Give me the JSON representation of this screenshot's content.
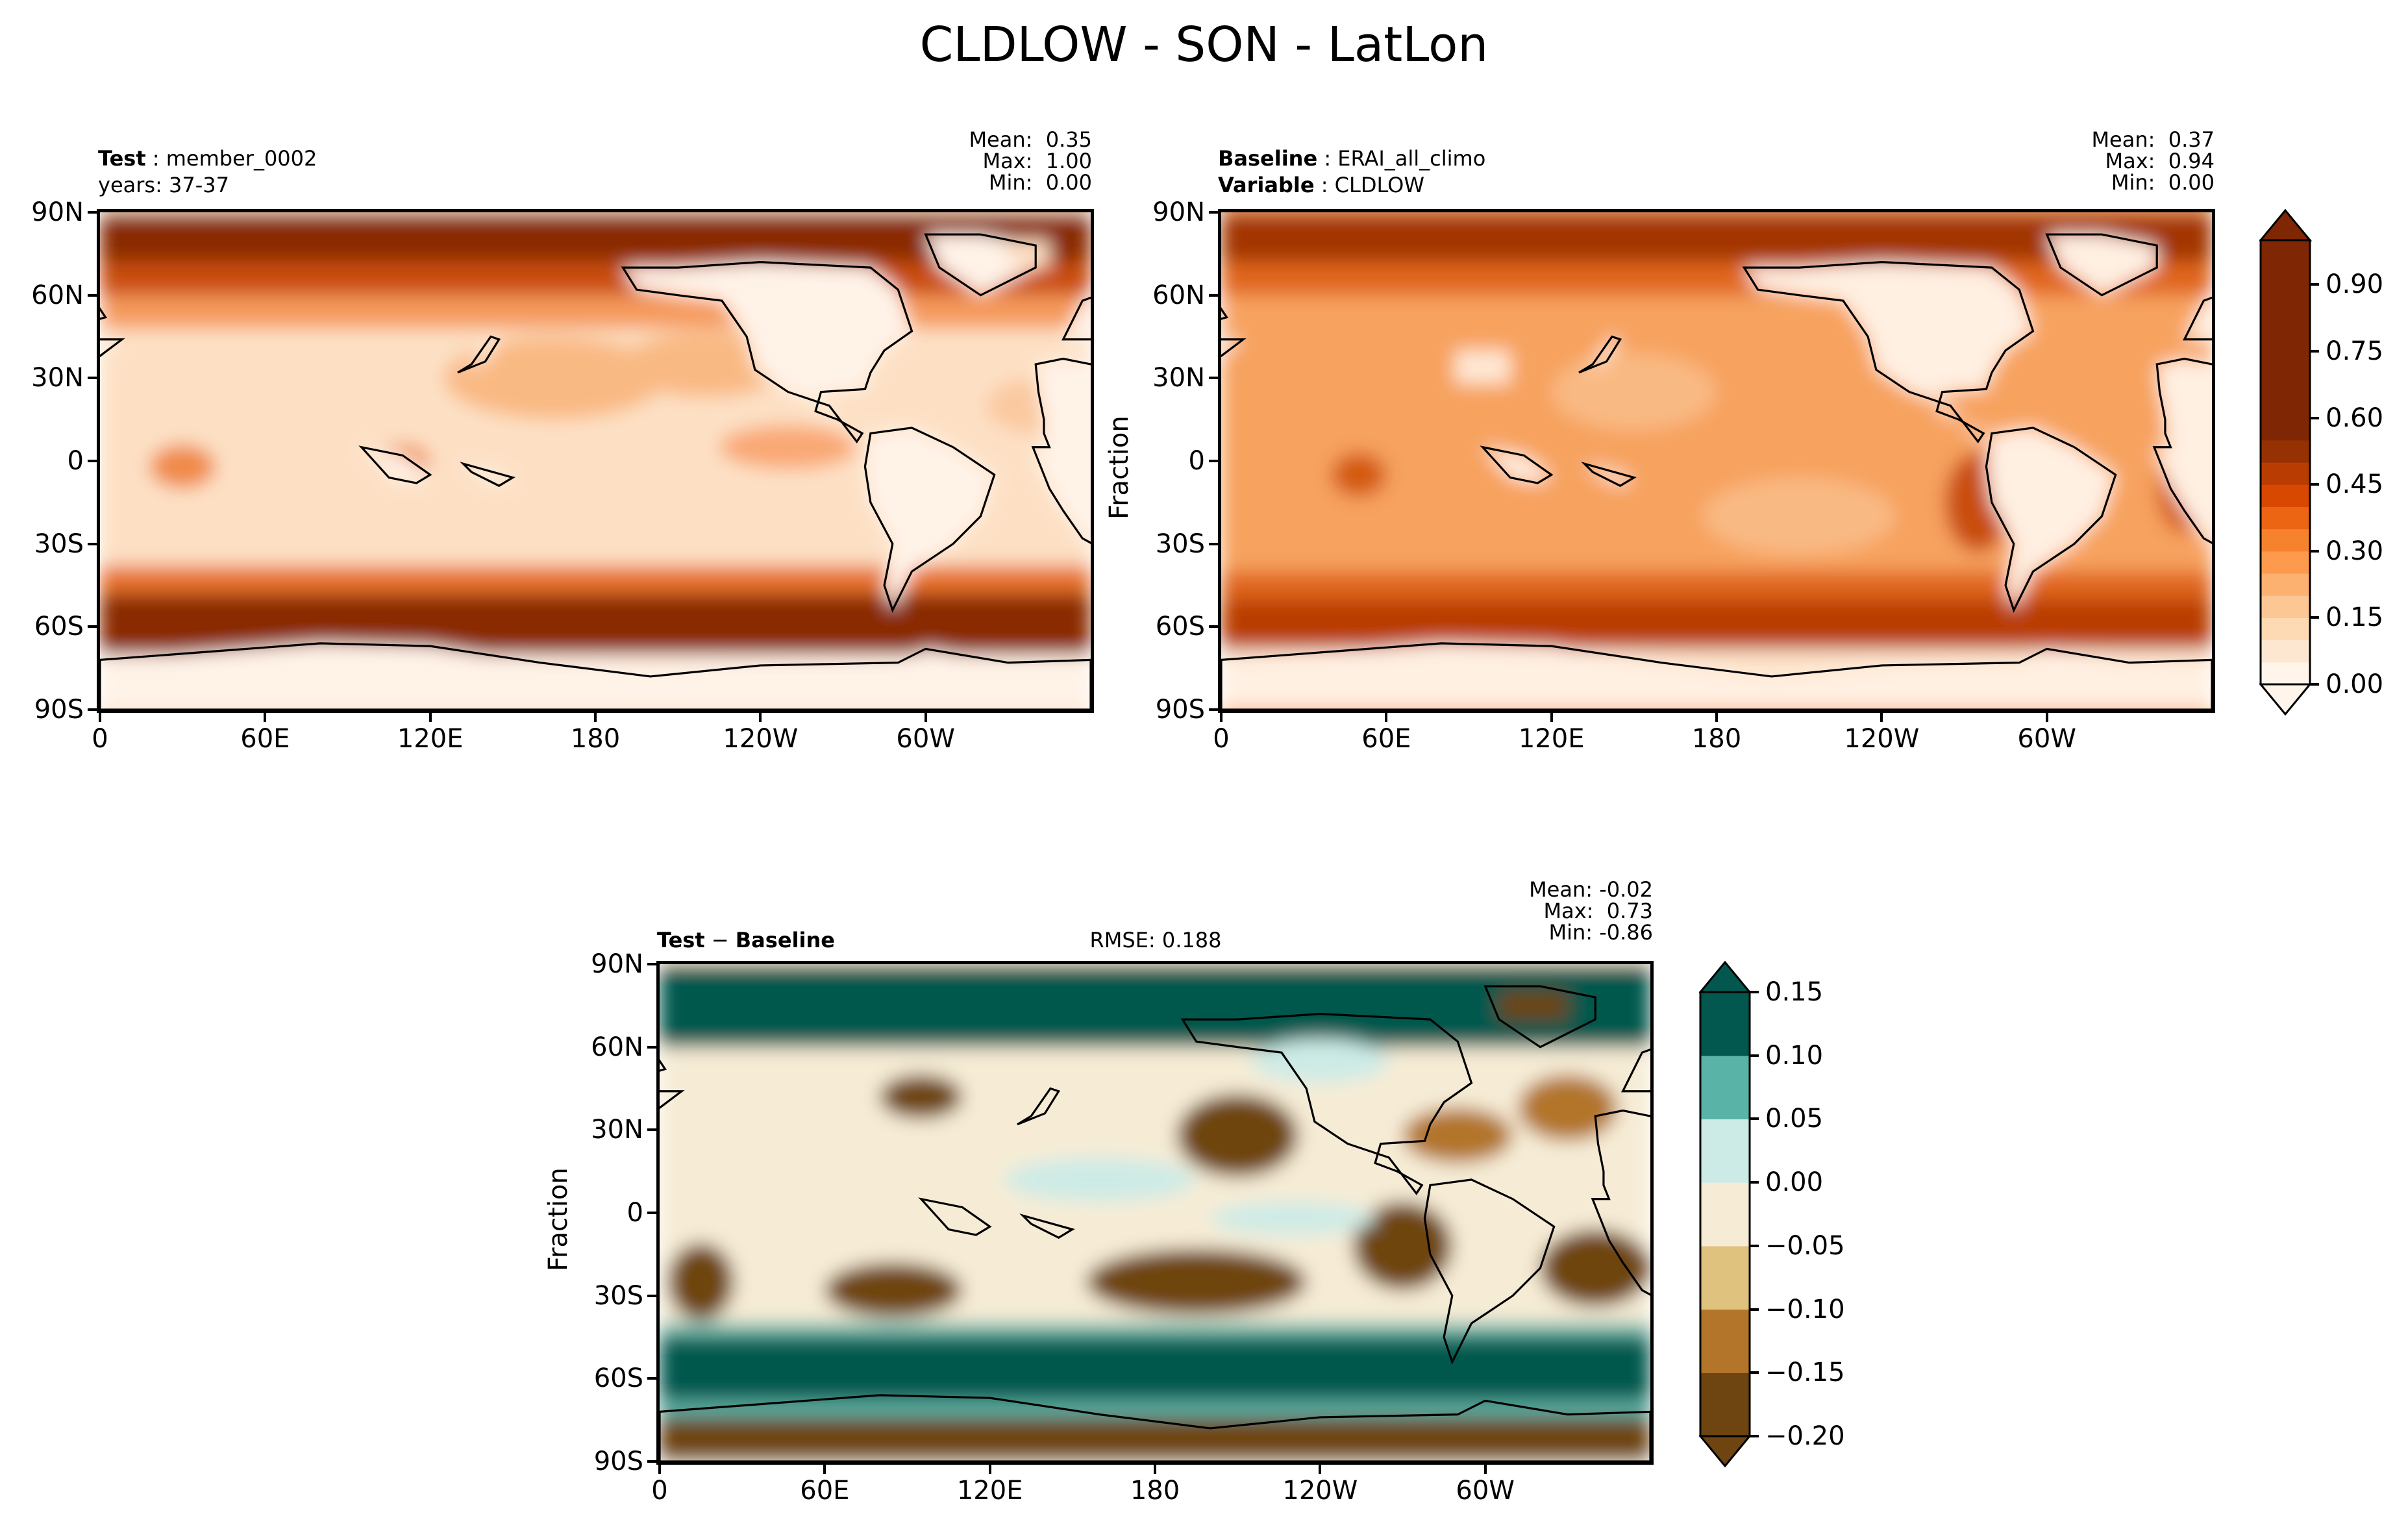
{
  "figure_title": "CLDLOW - SON - LatLon",
  "panels": {
    "test": {
      "label1": "Test",
      "value1": "member_0002",
      "line2": "years: 37-37",
      "stats": "Mean:  0.35\nMax:  1.00\nMin:  0.00"
    },
    "baseline": {
      "label1": "Baseline",
      "value1": "ERAI_all_climo",
      "label2": "Variable",
      "value2": "CLDLOW",
      "ylabel": "Fraction",
      "stats": "Mean:  0.37\nMax:  0.94\nMin:  0.00"
    },
    "diff": {
      "label_a": "Test",
      "op": "−",
      "label_b": "Baseline",
      "rmse": "RMSE: 0.188",
      "ylabel": "Fraction",
      "stats": "Mean: -0.02\nMax:  0.73\nMin: -0.86"
    }
  },
  "axes": {
    "lat_ticks": [
      "90N",
      "60N",
      "30N",
      "0",
      "30S",
      "60S",
      "90S"
    ],
    "lon_ticks": [
      "0",
      "60E",
      "120E",
      "180",
      "120W",
      "60W"
    ]
  },
  "colorbar_top": {
    "ticks": [
      "0.90",
      "0.75",
      "0.60",
      "0.45",
      "0.30",
      "0.15",
      "0.00"
    ],
    "tick_values": [
      0.9,
      0.75,
      0.6,
      0.45,
      0.3,
      0.15,
      0.0
    ],
    "range": [
      0,
      1
    ],
    "colormap": "Oranges",
    "extend": "both",
    "colors": [
      "#fff5eb",
      "#fee7d0",
      "#fdd9b4",
      "#fdc795",
      "#fdb171",
      "#fd9a4e",
      "#f7822d",
      "#eb6513",
      "#d94801",
      "#b93d02",
      "#963103",
      "#7f2704"
    ]
  },
  "colorbar_diff": {
    "ticks": [
      "0.15",
      "0.10",
      "0.05",
      "0.00",
      "−0.05",
      "−0.10",
      "−0.15",
      "−0.20"
    ],
    "levels": [
      -0.2,
      -0.15,
      -0.1,
      -0.05,
      0.0,
      0.05,
      0.1,
      0.15
    ],
    "colormap": "BrBG",
    "extend": "both",
    "colors": [
      "#6e4511",
      "#b27529",
      "#e0c27f",
      "#f6ecd6",
      "#cdebe6",
      "#5ab3a7",
      "#02584e"
    ]
  }
}
